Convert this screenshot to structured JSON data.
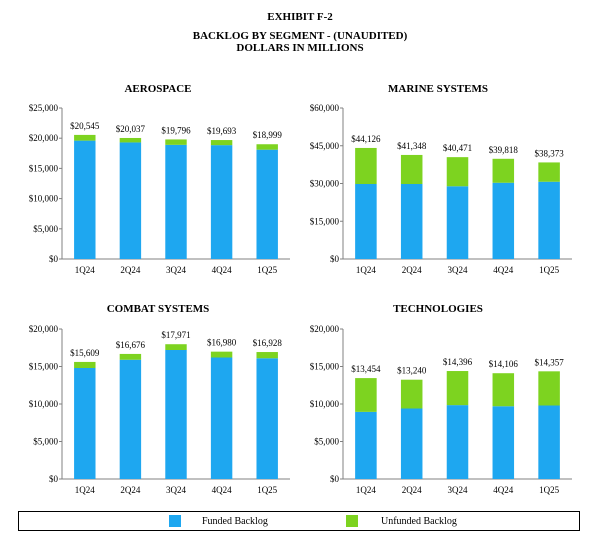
{
  "header": {
    "exhibit": "EXHIBIT F-2",
    "title": "BACKLOG BY SEGMENT - (UNAUDITED)",
    "units": "DOLLARS IN MILLIONS"
  },
  "colors": {
    "funded": "#1ea7f0",
    "unfunded": "#7dd320",
    "axis": "#808080"
  },
  "legend": {
    "funded": "Funded Backlog",
    "unfunded": "Unfunded Backlog"
  },
  "chart_data": [
    {
      "type": "bar",
      "stacked": true,
      "title": "AEROSPACE",
      "categories": [
        "1Q24",
        "2Q24",
        "3Q24",
        "4Q24",
        "1Q25"
      ],
      "ylim": [
        0,
        25000
      ],
      "yticks": [
        0,
        5000,
        10000,
        15000,
        20000,
        25000
      ],
      "ytick_labels": [
        "$0",
        "$5,000",
        "$10,000",
        "$15,000",
        "$20,000",
        "$25,000"
      ],
      "series": [
        {
          "name": "Funded Backlog",
          "values": [
            19600,
            19300,
            18900,
            18850,
            18100
          ]
        },
        {
          "name": "Unfunded Backlog",
          "values": [
            945,
            737,
            896,
            843,
            899
          ]
        }
      ],
      "totals": [
        20545,
        20037,
        19796,
        19693,
        18999
      ],
      "total_labels": [
        "$20,545",
        "$20,037",
        "$19,796",
        "$19,693",
        "$18,999"
      ]
    },
    {
      "type": "bar",
      "stacked": true,
      "title": "MARINE SYSTEMS",
      "categories": [
        "1Q24",
        "2Q24",
        "3Q24",
        "4Q24",
        "1Q25"
      ],
      "ylim": [
        0,
        60000
      ],
      "yticks": [
        0,
        15000,
        30000,
        45000,
        60000
      ],
      "ytick_labels": [
        "$0",
        "$15,000",
        "$30,000",
        "$45,000",
        "$60,000"
      ],
      "series": [
        {
          "name": "Funded Backlog",
          "values": [
            29800,
            29800,
            28900,
            30300,
            30700
          ]
        },
        {
          "name": "Unfunded Backlog",
          "values": [
            14326,
            11548,
            11571,
            9518,
            7673
          ]
        }
      ],
      "totals": [
        44126,
        41348,
        40471,
        39818,
        38373
      ],
      "total_labels": [
        "$44,126",
        "$41,348",
        "$40,471",
        "$39,818",
        "$38,373"
      ]
    },
    {
      "type": "bar",
      "stacked": true,
      "title": "COMBAT SYSTEMS",
      "categories": [
        "1Q24",
        "2Q24",
        "3Q24",
        "4Q24",
        "1Q25"
      ],
      "ylim": [
        0,
        20000
      ],
      "yticks": [
        0,
        5000,
        10000,
        15000,
        20000
      ],
      "ytick_labels": [
        "$0",
        "$5,000",
        "$10,000",
        "$15,000",
        "$20,000"
      ],
      "series": [
        {
          "name": "Funded Backlog",
          "values": [
            14800,
            15900,
            17200,
            16200,
            16100
          ]
        },
        {
          "name": "Unfunded Backlog",
          "values": [
            809,
            776,
            771,
            780,
            828
          ]
        }
      ],
      "totals": [
        15609,
        16676,
        17971,
        16980,
        16928
      ],
      "total_labels": [
        "$15,609",
        "$16,676",
        "$17,971",
        "$16,980",
        "$16,928"
      ]
    },
    {
      "type": "bar",
      "stacked": true,
      "title": "TECHNOLOGIES",
      "categories": [
        "1Q24",
        "2Q24",
        "3Q24",
        "4Q24",
        "1Q25"
      ],
      "ylim": [
        0,
        20000
      ],
      "yticks": [
        0,
        5000,
        10000,
        15000,
        20000
      ],
      "ytick_labels": [
        "$0",
        "$5,000",
        "$10,000",
        "$15,000",
        "$20,000"
      ],
      "series": [
        {
          "name": "Funded Backlog",
          "values": [
            8950,
            9400,
            9850,
            9700,
            9800
          ]
        },
        {
          "name": "Unfunded Backlog",
          "values": [
            4504,
            3840,
            4546,
            4406,
            4557
          ]
        }
      ],
      "totals": [
        13454,
        13240,
        14396,
        14106,
        14357
      ],
      "total_labels": [
        "$13,454",
        "$13,240",
        "$14,396",
        "$14,106",
        "$14,357"
      ]
    }
  ]
}
